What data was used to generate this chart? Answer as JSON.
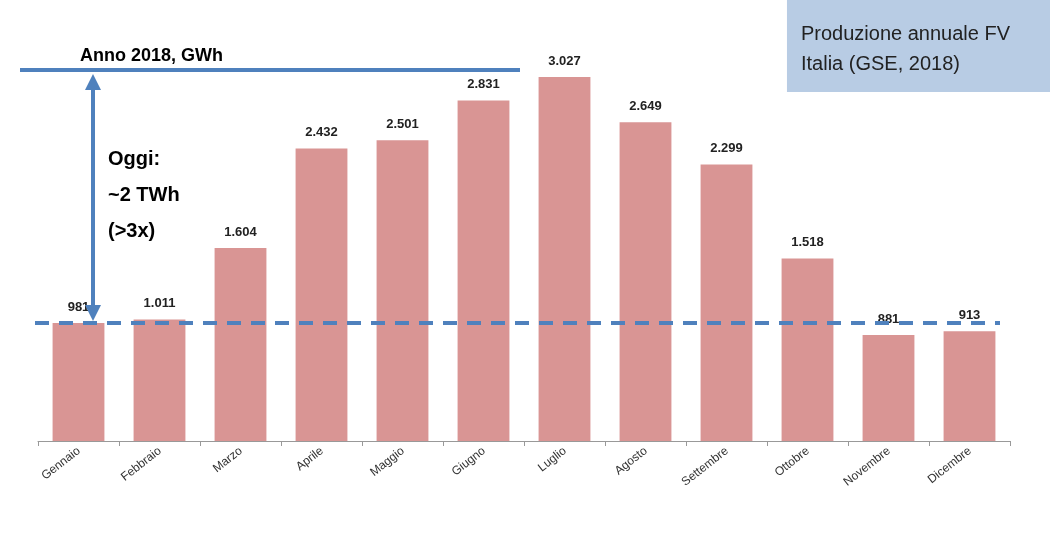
{
  "chart_data": {
    "type": "bar",
    "title": "Produzione annuale FV\nItalia (GSE, 2018)",
    "categories": [
      "Gennaio",
      "Febbraio",
      "Marzo",
      "Aprile",
      "Maggio",
      "Giugno",
      "Luglio",
      "Agosto",
      "Settembre",
      "Ottobre",
      "Novembre",
      "Dicembre"
    ],
    "values": [
      981,
      1011,
      1604,
      2432,
      2501,
      2831,
      3027,
      2649,
      2299,
      1518,
      881,
      913
    ],
    "value_labels": [
      "981",
      "1.011",
      "1.604",
      "2.432",
      "2.501",
      "2.831",
      "3.027",
      "2.649",
      "2.299",
      "1.518",
      "881",
      "913"
    ],
    "color": "#d99594",
    "tick_labels": "x",
    "ref_lines": [
      {
        "axis": "y",
        "value": 3085,
        "label": "Anno 2018, GWh",
        "color": "#4f81bd",
        "line_style": "solid"
      },
      {
        "axis": "y",
        "value": 980,
        "label": null,
        "color": "#4f81bd",
        "line_style": "dashed"
      }
    ],
    "annotations": [
      "Oggi:\n~2 TWh\n(>3x)"
    ]
  }
}
